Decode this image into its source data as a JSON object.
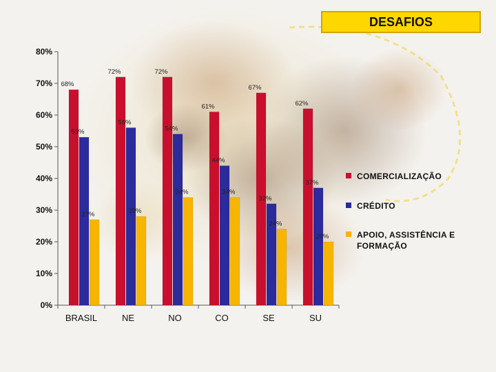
{
  "header": {
    "title": "DESAFIOS"
  },
  "colors": {
    "comercializacao": "#c8102e",
    "credito": "#2b2b9c",
    "apoio": "#f7b500",
    "title_bg": "#ffd700"
  },
  "legend": {
    "comercializacao": "COMERCIALIZAÇÃO",
    "credito": "CRÉDITO",
    "apoio": "APOIO, ASSISTÊNCIA E FORMAÇÃO"
  },
  "chart_data": {
    "type": "bar",
    "title": "DESAFIOS",
    "categories": [
      "BRASIL",
      "NE",
      "NO",
      "CO",
      "SE",
      "SU"
    ],
    "series": [
      {
        "name": "COMERCIALIZAÇÃO",
        "values": [
          68,
          72,
          72,
          61,
          67,
          62
        ],
        "labels": [
          "68%",
          "72%",
          "72%",
          "61%",
          "67%",
          "62%"
        ]
      },
      {
        "name": "CRÉDITO",
        "values": [
          53,
          56,
          54,
          44,
          32,
          37
        ],
        "labels": [
          "53%",
          "56%",
          "54%",
          "44%",
          "32%",
          "37%"
        ]
      },
      {
        "name": "APOIO, ASSISTÊNCIA E FORMAÇÃO",
        "values": [
          27,
          28,
          34,
          34,
          24,
          20
        ],
        "labels": [
          "27%",
          "28%",
          "34%",
          "34%",
          "24%",
          "20%"
        ]
      }
    ],
    "ylim": [
      0,
      80
    ],
    "yticks": [
      0,
      10,
      20,
      30,
      40,
      50,
      60,
      70,
      80
    ],
    "ytick_labels": [
      "0%",
      "10%",
      "20%",
      "30%",
      "40%",
      "50%",
      "60%",
      "70%",
      "80%"
    ],
    "xlabel": "",
    "ylabel": "",
    "grid": false,
    "legend_position": "right"
  }
}
